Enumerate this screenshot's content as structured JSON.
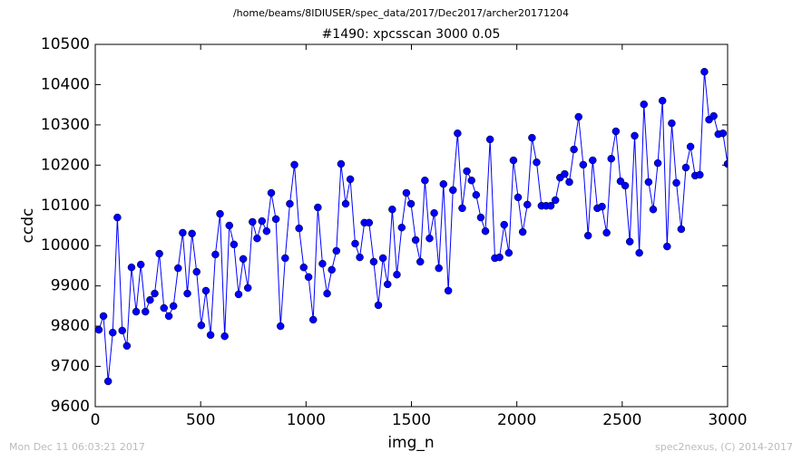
{
  "chart_data": {
    "type": "line",
    "suptitle": "/home/beams/8IDIUSER/spec_data/2017/Dec2017/archer20171204",
    "title": "#1490: xpcsscan 3000 0.05",
    "x_label": "img_n",
    "y_label": "ccdc",
    "footer_left": "Mon Dec 11 06:03:21 2017",
    "footer_right": "spec2nexus, (C) 2014-2017",
    "x": [
      17,
      39,
      61,
      83,
      105,
      128,
      150,
      172,
      194,
      216,
      238,
      260,
      282,
      304,
      326,
      349,
      371,
      393,
      415,
      437,
      459,
      481,
      503,
      525,
      547,
      570,
      592,
      614,
      636,
      658,
      680,
      702,
      724,
      746,
      768,
      791,
      813,
      835,
      857,
      879,
      901,
      923,
      945,
      967,
      989,
      1012,
      1034,
      1056,
      1078,
      1100,
      1122,
      1144,
      1166,
      1188,
      1210,
      1233,
      1255,
      1277,
      1299,
      1321,
      1343,
      1365,
      1387,
      1409,
      1431,
      1454,
      1476,
      1498,
      1520,
      1542,
      1564,
      1586,
      1608,
      1630,
      1652,
      1675,
      1697,
      1719,
      1741,
      1763,
      1785,
      1807,
      1829,
      1851,
      1873,
      1896,
      1918,
      1940,
      1962,
      1984,
      2006,
      2028,
      2050,
      2072,
      2094,
      2117,
      2139,
      2161,
      2183,
      2205,
      2227,
      2249,
      2271,
      2293,
      2315,
      2338,
      2360,
      2382,
      2404,
      2426,
      2448,
      2470,
      2492,
      2514,
      2536,
      2559,
      2581,
      2603,
      2625,
      2647,
      2669,
      2691,
      2713,
      2735,
      2757,
      2780,
      2802,
      2824,
      2846,
      2868,
      2890,
      2912,
      2934,
      2956,
      2978,
      3000
    ],
    "series": [
      {
        "name": "ccdc",
        "color": "#0000ff",
        "values": [
          9791,
          9825,
          9663,
          9784,
          10070,
          9789,
          9751,
          9946,
          9836,
          9953,
          9836,
          9865,
          9881,
          9980,
          9845,
          9825,
          9850,
          9944,
          10032,
          9881,
          10030,
          9935,
          9802,
          9888,
          9778,
          9978,
          10079,
          9775,
          10050,
          10003,
          9879,
          9967,
          9895,
          10059,
          10018,
          10061,
          10036,
          10131,
          10066,
          9800,
          9969,
          10104,
          10201,
          10043,
          9946,
          9922,
          9816,
          10095,
          9955,
          9881,
          9940,
          9987,
          10203,
          10104,
          10165,
          10005,
          9971,
          10057,
          10057,
          9960,
          9852,
          9969,
          9904,
          10090,
          9928,
          10045,
          10131,
          10104,
          10014,
          9960,
          10162,
          10018,
          10081,
          9944,
          10153,
          9888,
          10138,
          10279,
          10093,
          10185,
          10162,
          10126,
          10070,
          10036,
          10264,
          9969,
          9971,
          10052,
          9982,
          10212,
          10120,
          10034,
          10102,
          10268,
          10207,
          10099,
          10099,
          10099,
          10113,
          10169,
          10178,
          10158,
          10239,
          10320,
          10201,
          10025,
          10212,
          10093,
          10097,
          10032,
          10216,
          10284,
          10160,
          10149,
          10010,
          10273,
          9982,
          10351,
          10158,
          10090,
          10205,
          10360,
          9998,
          10304,
          10156,
          10041,
          10194,
          10246,
          10174,
          10176,
          10432,
          10313,
          10322,
          10277,
          10279,
          10203
        ]
      }
    ],
    "xlim": [
      0,
      3000
    ],
    "xticks": [
      0,
      500,
      1000,
      1500,
      2000,
      2500,
      3000
    ],
    "ylim": [
      9600,
      10500
    ],
    "yticks": [
      9600,
      9700,
      9800,
      9900,
      10000,
      10100,
      10200,
      10300,
      10400,
      10500
    ],
    "grid": false
  }
}
